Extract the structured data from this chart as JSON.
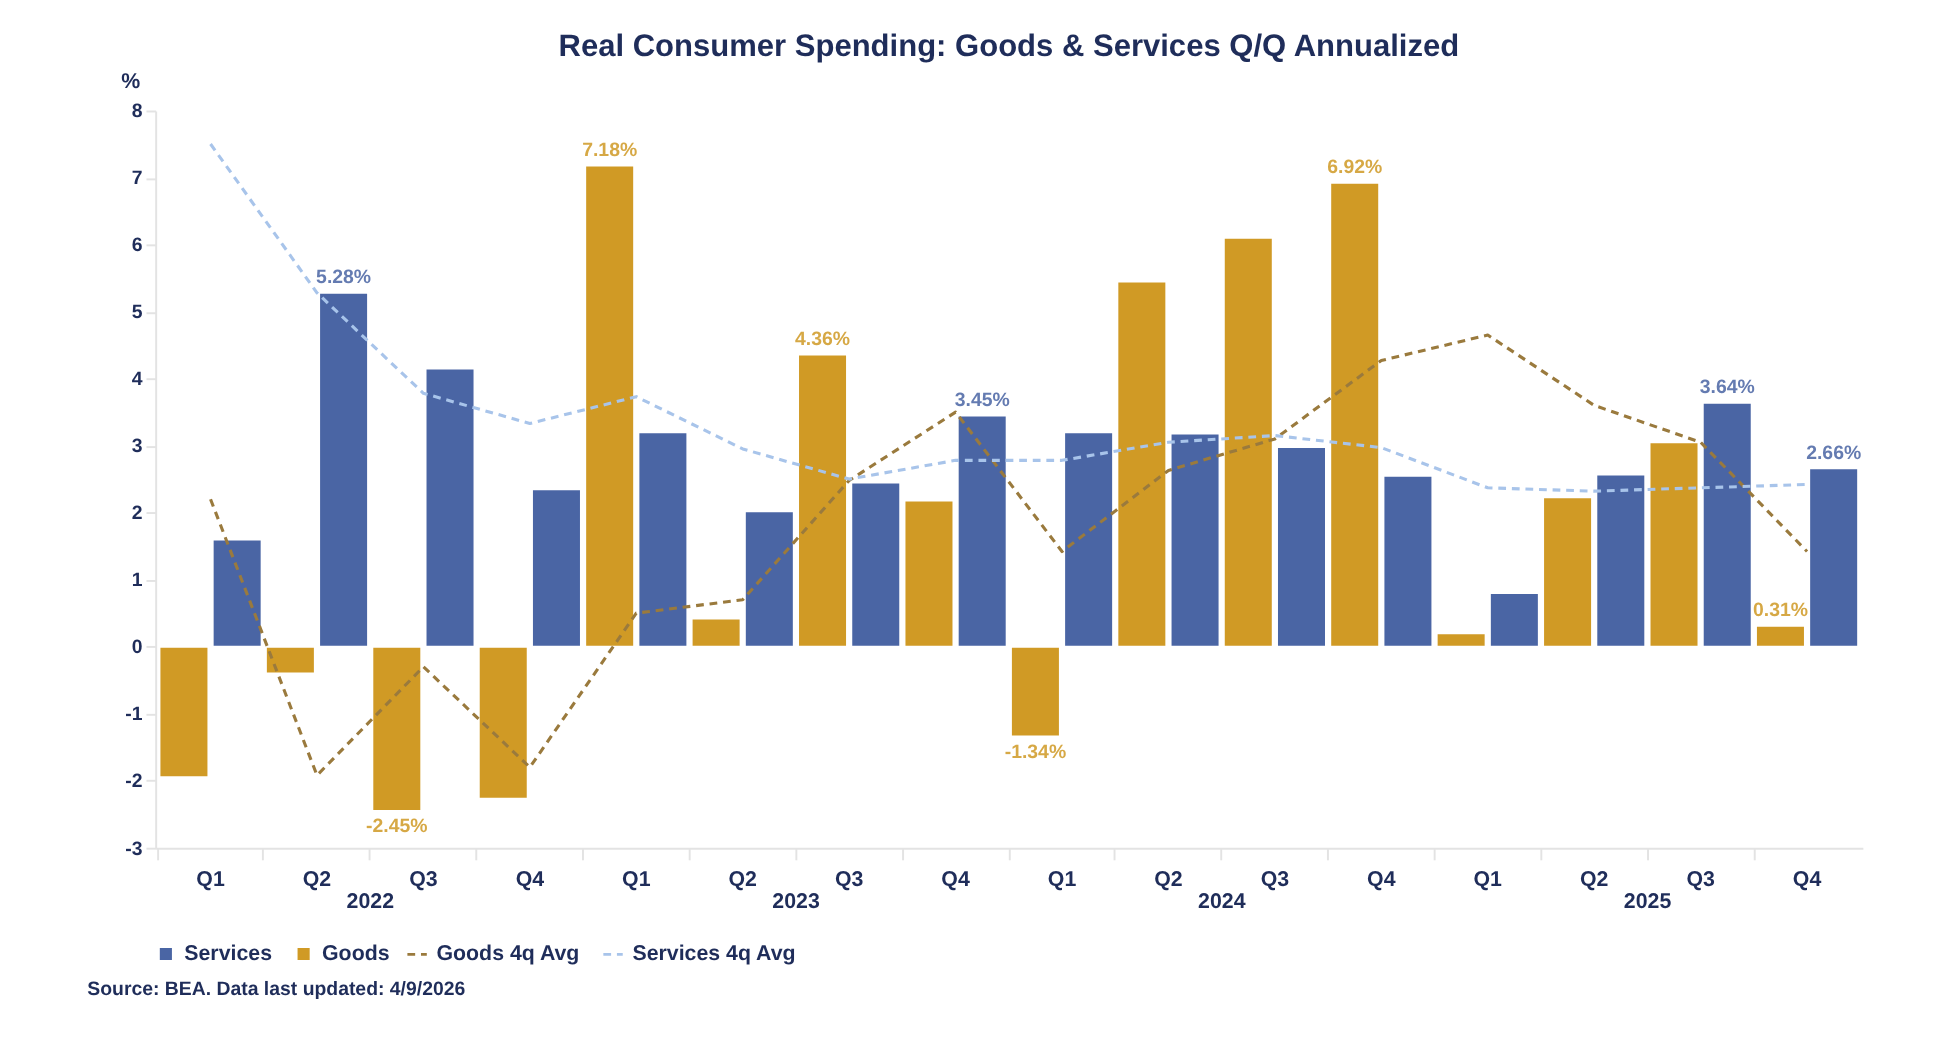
{
  "chart_data": {
    "type": "bar",
    "title": "Real Consumer Spending: Goods & Services Q/Q Annualized",
    "ylabel": "%",
    "categories": [
      "Q1",
      "Q2",
      "Q3",
      "Q4",
      "Q1",
      "Q2",
      "Q3",
      "Q4",
      "Q1",
      "Q2",
      "Q3",
      "Q4",
      "Q1",
      "Q2",
      "Q3",
      "Q4"
    ],
    "series": [
      {
        "name": "Services",
        "color": "#4a65a4",
        "values": [
          1.6,
          5.28,
          4.15,
          2.35,
          3.2,
          2.02,
          2.45,
          3.45,
          3.2,
          3.18,
          2.98,
          2.55,
          0.8,
          2.57,
          3.64,
          2.66
        ],
        "value_labels": [
          null,
          "5.28%",
          null,
          null,
          null,
          null,
          null,
          "3.45%",
          null,
          null,
          null,
          null,
          null,
          null,
          "3.64%",
          "2.66%"
        ]
      },
      {
        "name": "Goods",
        "color": "#d09a25",
        "values": [
          -1.95,
          -0.4,
          -2.45,
          -2.27,
          7.18,
          0.42,
          4.36,
          2.18,
          -1.34,
          5.45,
          6.1,
          6.92,
          0.2,
          2.23,
          3.05,
          0.31
        ],
        "value_labels": [
          null,
          null,
          "-2.45%",
          null,
          "7.18%",
          null,
          "4.36%",
          null,
          "-1.34%",
          null,
          null,
          "6.92%",
          null,
          null,
          null,
          "0.31%"
        ]
      },
      {
        "name": "Goods 4q Avg",
        "type": "line",
        "line_style": "dashed",
        "color": "#9a7a3d",
        "values": [
          2.2,
          -1.92,
          -0.3,
          -1.8,
          0.5,
          0.7,
          2.48,
          3.5,
          1.42,
          2.63,
          3.1,
          4.27,
          4.65,
          3.6,
          3.05,
          1.42
        ]
      },
      {
        "name": "Services 4q Avg",
        "type": "line",
        "line_style": "dashed",
        "color": "#a8c4ea",
        "values": [
          7.5,
          5.28,
          3.78,
          3.33,
          3.73,
          2.95,
          2.5,
          2.78,
          2.78,
          3.05,
          3.15,
          2.97,
          2.37,
          2.32,
          2.37,
          2.42
        ]
      }
    ],
    "ylim": [
      -3,
      8
    ],
    "yticks": [
      -3,
      -2,
      -1,
      0,
      1,
      2,
      3,
      4,
      5,
      6,
      7,
      8
    ],
    "grid": false,
    "legend": "bottom left",
    "annotations": [
      "2022",
      "2023",
      "2024",
      "2025",
      "Source: BEA. Data last updated: 4/9/2026"
    ]
  }
}
